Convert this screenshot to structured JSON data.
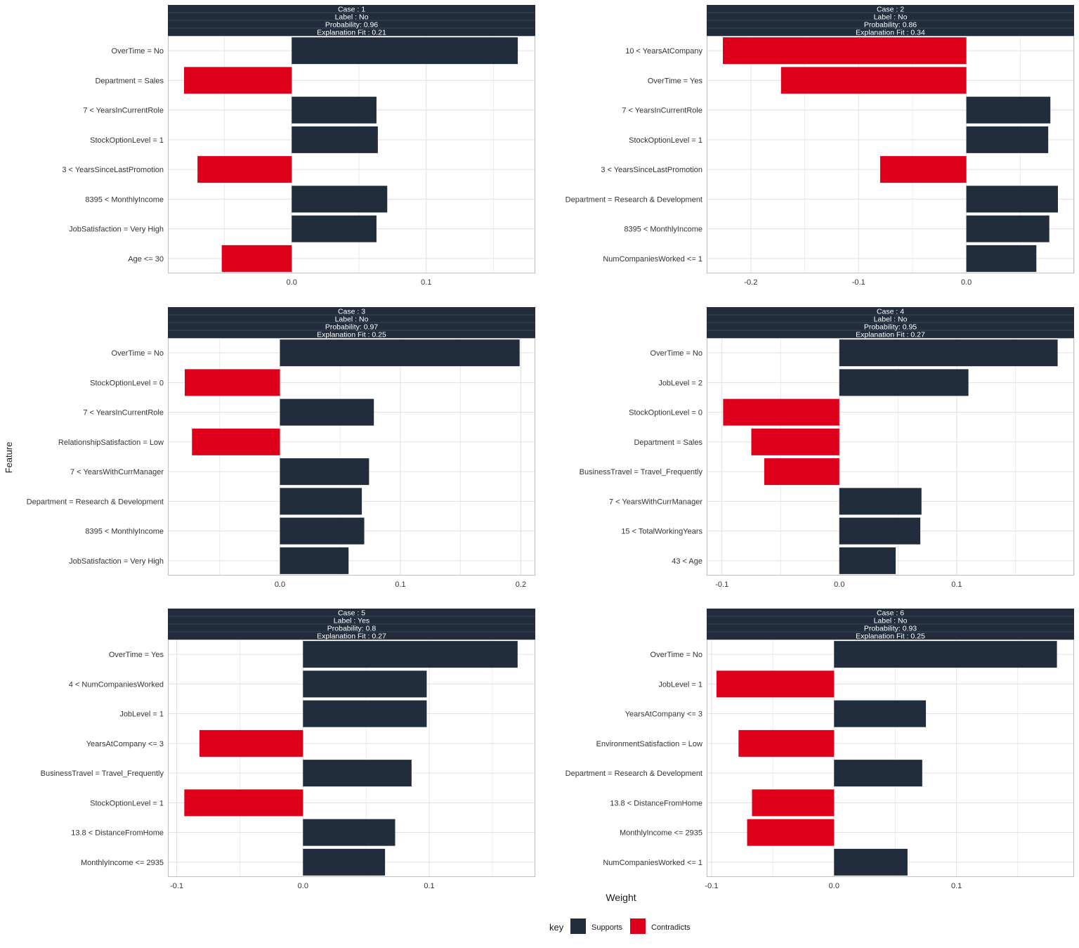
{
  "figure": {
    "ylabel": "Feature",
    "xlabel": "Weight",
    "legend_title": "key",
    "legend": [
      {
        "label": "Supports",
        "color": "#212D3C"
      },
      {
        "label": "Contradicts",
        "color": "#DE001A"
      }
    ]
  },
  "colors": {
    "supports": "#212D3C",
    "contradicts": "#DE001A",
    "strip_bg": "#212D3C",
    "strip_text": "#FFFFFF",
    "grid": "#E0E0E0",
    "panel_border": "#BDBDBD"
  },
  "chart_data": [
    {
      "type": "bar",
      "orientation": "horizontal",
      "strip": [
        "Case : 1",
        "Label : No",
        "Probability: 0.96",
        "Explanation Fit : 0.21"
      ],
      "categories": [
        "OverTime = No",
        "Department = Sales",
        "7 < YearsInCurrentRole",
        "StockOptionLevel = 1",
        "3 < YearsSinceLastPromotion",
        "8395 < MonthlyIncome",
        "JobSatisfaction = Very High",
        "Age <= 30"
      ],
      "values": [
        0.168,
        -0.08,
        0.063,
        0.064,
        -0.07,
        0.071,
        0.063,
        -0.052
      ],
      "xlim": [
        -0.092,
        0.181
      ],
      "xticks": [
        0.0,
        0.1
      ],
      "xtick_labels": [
        "0.0",
        "0.1"
      ]
    },
    {
      "type": "bar",
      "orientation": "horizontal",
      "strip": [
        "Case : 2",
        "Label : No",
        "Probability: 0.86",
        "Explanation Fit : 0.34"
      ],
      "categories": [
        "10 < YearsAtCompany",
        "OverTime = Yes",
        "7 < YearsInCurrentRole",
        "StockOptionLevel = 1",
        "3 < YearsSinceLastPromotion",
        "Department = Research & Development",
        "8395 < MonthlyIncome",
        "NumCompaniesWorked <= 1"
      ],
      "values": [
        -0.226,
        -0.172,
        0.078,
        0.076,
        -0.08,
        0.085,
        0.077,
        0.065
      ],
      "xlim": [
        -0.241,
        0.1
      ],
      "xticks": [
        -0.2,
        -0.1,
        0.0
      ],
      "xtick_labels": [
        "-0.2",
        "-0.1",
        "0.0"
      ]
    },
    {
      "type": "bar",
      "orientation": "horizontal",
      "strip": [
        "Case : 3",
        "Label : No",
        "Probability: 0.97",
        "Explanation Fit : 0.25"
      ],
      "categories": [
        "OverTime = No",
        "StockOptionLevel = 0",
        "7 < YearsInCurrentRole",
        "RelationshipSatisfaction = Low",
        "7 < YearsWithCurrManager",
        "Department = Research & Development",
        "8395 < MonthlyIncome",
        "JobSatisfaction = Very High"
      ],
      "values": [
        0.199,
        -0.079,
        0.078,
        -0.073,
        0.074,
        0.068,
        0.07,
        0.057
      ],
      "xlim": [
        -0.093,
        0.212
      ],
      "xticks": [
        0.0,
        0.1,
        0.2
      ],
      "xtick_labels": [
        "0.0",
        "0.1",
        "0.2"
      ]
    },
    {
      "type": "bar",
      "orientation": "horizontal",
      "strip": [
        "Case : 4",
        "Label : No",
        "Probability: 0.95",
        "Explanation Fit : 0.27"
      ],
      "categories": [
        "OverTime = No",
        "JobLevel = 2",
        "StockOptionLevel = 0",
        "Department = Sales",
        "BusinessTravel = Travel_Frequently",
        "7 < YearsWithCurrManager",
        "15 < TotalWorkingYears",
        "43 < Age"
      ],
      "values": [
        0.186,
        0.11,
        -0.099,
        -0.075,
        -0.064,
        0.07,
        0.069,
        0.048
      ],
      "xlim": [
        -0.113,
        0.2
      ],
      "xticks": [
        -0.1,
        0.0,
        0.1
      ],
      "xtick_labels": [
        "-0.1",
        "0.0",
        "0.1"
      ]
    },
    {
      "type": "bar",
      "orientation": "horizontal",
      "strip": [
        "Case : 5",
        "Label : Yes",
        "Probability: 0.8",
        "Explanation Fit : 0.27"
      ],
      "categories": [
        "OverTime = Yes",
        "4 < NumCompaniesWorked",
        "JobLevel = 1",
        "YearsAtCompany <= 3",
        "BusinessTravel = Travel_Frequently",
        "StockOptionLevel = 1",
        "13.8 < DistanceFromHome",
        "MonthlyIncome <= 2935"
      ],
      "values": [
        0.17,
        0.098,
        0.098,
        -0.082,
        0.086,
        -0.094,
        0.073,
        0.065
      ],
      "xlim": [
        -0.107,
        0.184
      ],
      "xticks": [
        -0.1,
        0.0,
        0.1
      ],
      "xtick_labels": [
        "-0.1",
        "0.0",
        "0.1"
      ]
    },
    {
      "type": "bar",
      "orientation": "horizontal",
      "strip": [
        "Case : 6",
        "Label : No",
        "Probability: 0.93",
        "Explanation Fit : 0.25"
      ],
      "categories": [
        "OverTime = No",
        "JobLevel = 1",
        "YearsAtCompany <= 3",
        "EnvironmentSatisfaction = Low",
        "Department = Research & Development",
        "13.8 < DistanceFromHome",
        "MonthlyIncome <= 2935",
        "NumCompaniesWorked <= 1"
      ],
      "values": [
        0.182,
        -0.096,
        0.075,
        -0.078,
        0.072,
        -0.067,
        -0.071,
        0.06
      ],
      "xlim": [
        -0.104,
        0.196
      ],
      "xticks": [
        -0.1,
        0.0,
        0.1
      ],
      "xtick_labels": [
        "-0.1",
        "0.0",
        "0.1"
      ]
    }
  ]
}
